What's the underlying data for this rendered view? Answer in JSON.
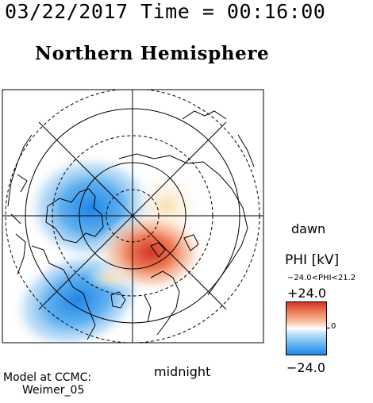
{
  "header": {
    "datetime": "03/22/2017 Time = 00:16:00",
    "hemisphere": "Northern Hemisphere"
  },
  "map": {
    "projection": "polar",
    "orientation_labels": {
      "dawn": "dawn",
      "midnight": "midnight"
    }
  },
  "colorbar": {
    "title": "PHI [kV]",
    "range_text": "−24.0<PHI<21.2",
    "max_label": "+24.0",
    "zero_label": "0",
    "min_label": "−24.0",
    "colors": {
      "positive": "#d2362a",
      "neutral": "#ffffff",
      "negative": "#1f86e8"
    }
  },
  "credit": {
    "line1": "Model at CCMC:",
    "line2": "Weimer_05"
  }
}
